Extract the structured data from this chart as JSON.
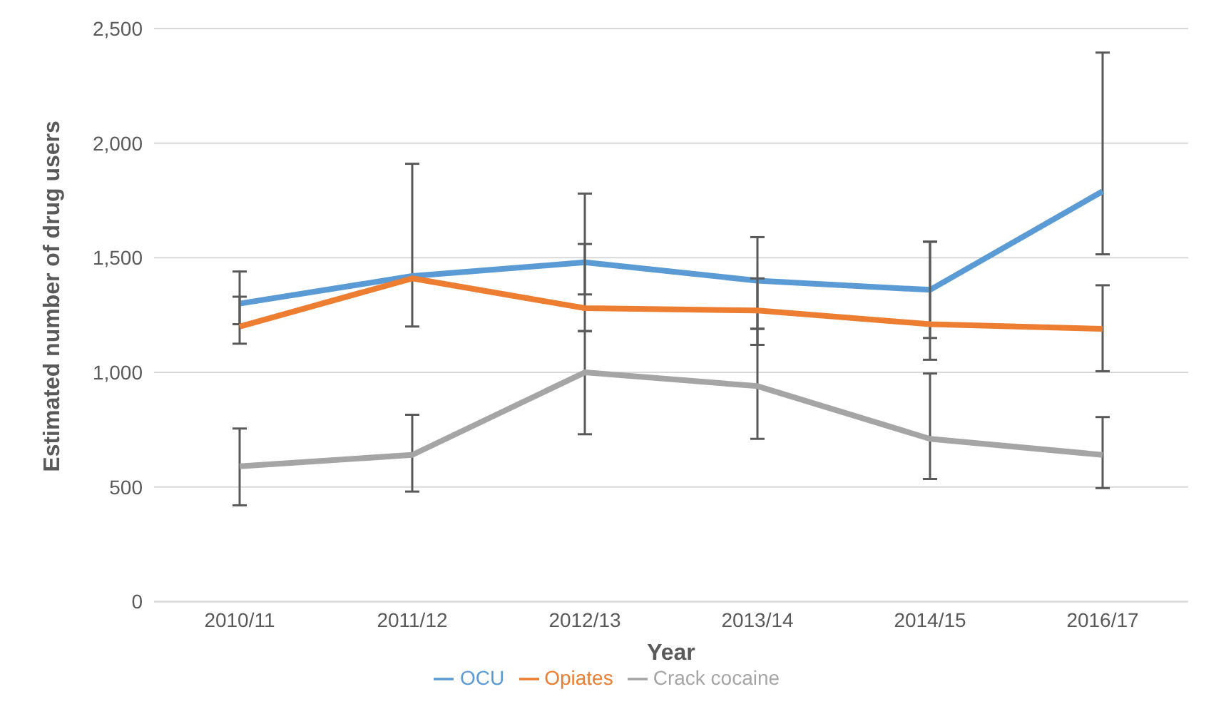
{
  "chart_data": {
    "type": "line",
    "xlabel": "Year",
    "ylabel": "Estimated number of drug users",
    "categories": [
      "2010/11",
      "2011/12",
      "2012/13",
      "2013/14",
      "2014/15",
      "2016/17"
    ],
    "series": [
      {
        "name": "OCU",
        "color": "#5b9bd5",
        "values": [
          1300,
          1420,
          1480,
          1400,
          1360,
          1790
        ],
        "errors": [
          [
            1210,
            1440
          ],
          [
            1200,
            1910
          ],
          [
            1340,
            1780
          ],
          [
            1190,
            1590
          ],
          [
            1150,
            1570
          ],
          [
            1515,
            2395
          ]
        ]
      },
      {
        "name": "Opiates",
        "color": "#ed7d31",
        "values": [
          1200,
          1410,
          1280,
          1270,
          1210,
          1190
        ],
        "errors": [
          [
            1125,
            1330
          ],
          null,
          [
            1180,
            1560
          ],
          [
            1120,
            1410
          ],
          [
            1055,
            1570
          ],
          [
            1005,
            1380
          ]
        ]
      },
      {
        "name": "Crack cocaine",
        "color": "#a5a5a5",
        "values": [
          590,
          640,
          1000,
          940,
          710,
          640
        ],
        "errors": [
          [
            420,
            755
          ],
          [
            480,
            815
          ],
          [
            730,
            1180
          ],
          [
            710,
            1190
          ],
          [
            535,
            995
          ],
          [
            495,
            805
          ]
        ]
      }
    ],
    "ylim": [
      0,
      2500
    ],
    "yticks": [
      0,
      500,
      {
        "value": 1000,
        "label": "1,000"
      },
      {
        "value": 1500,
        "label": "1,500"
      },
      {
        "value": 2000,
        "label": "2,000"
      },
      {
        "value": 2500,
        "label": "2,500"
      }
    ],
    "grid": "y",
    "legend": "bottom",
    "marker": "none",
    "line_style": "solid"
  }
}
